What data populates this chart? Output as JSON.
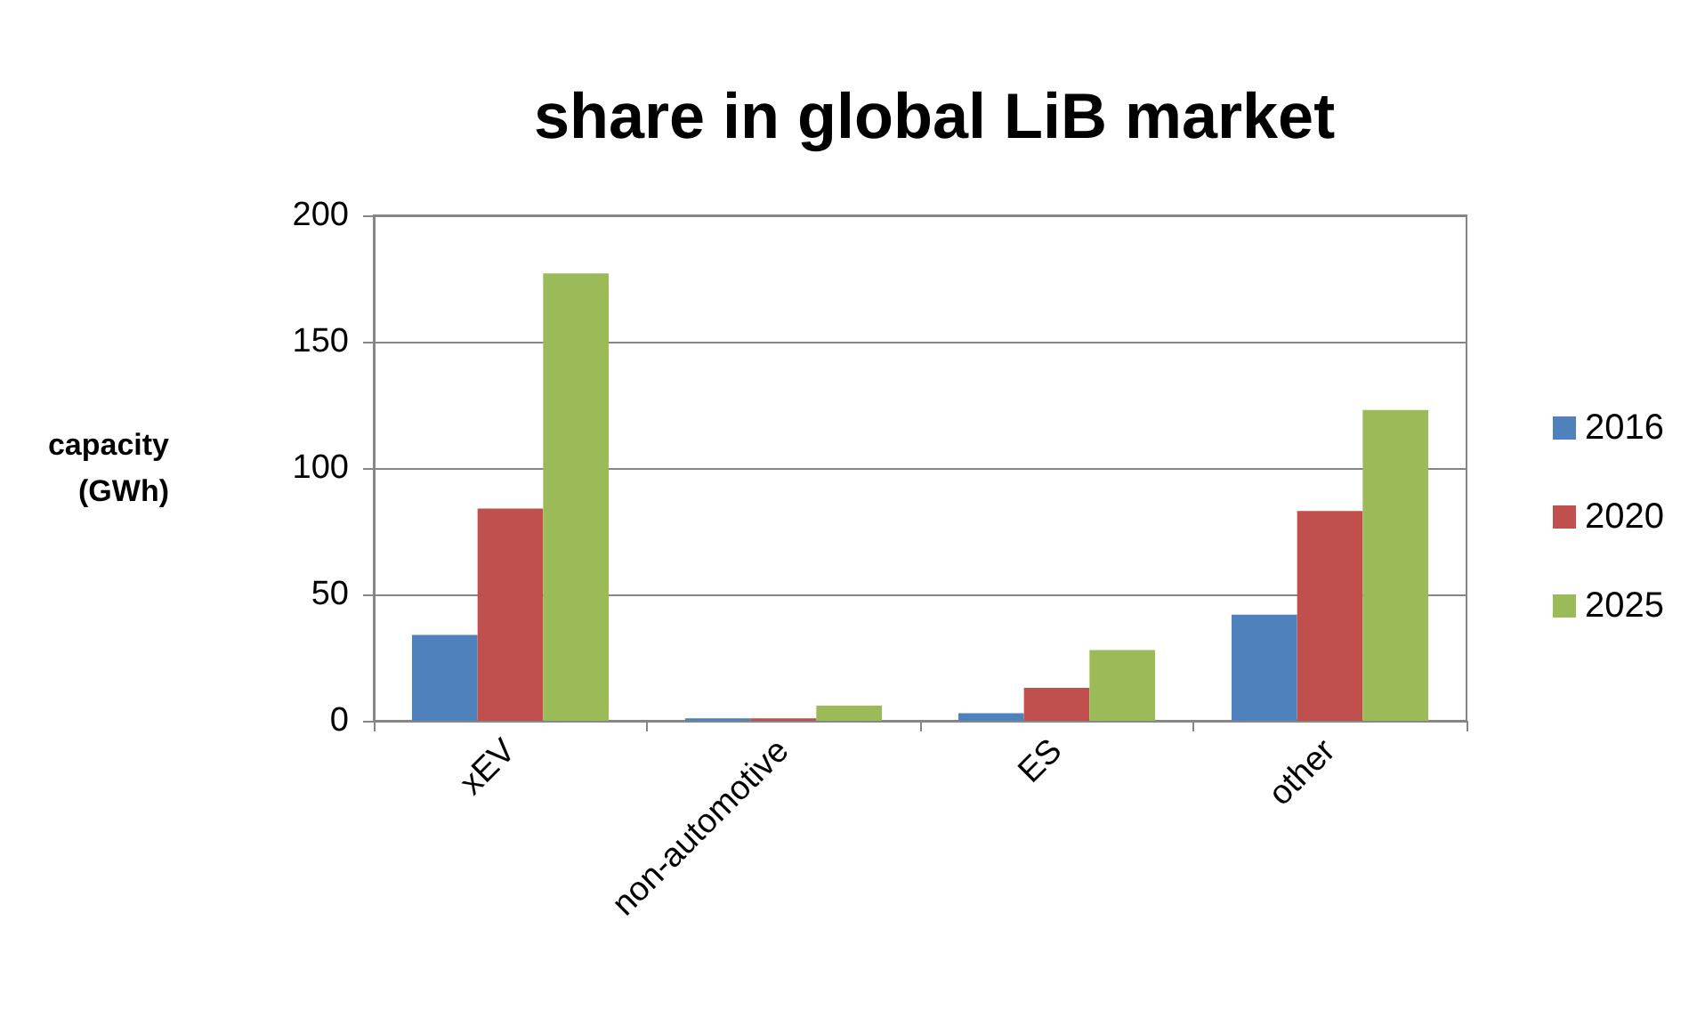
{
  "chart_data": {
    "type": "bar",
    "title": "share in global LiB market",
    "ylabel": "capacity\n(GWh)",
    "categories": [
      "xEV",
      "non-automotive",
      "ES",
      "other"
    ],
    "series": [
      {
        "name": "2016",
        "color": "#4f81bd",
        "values": [
          34,
          1,
          3,
          42
        ]
      },
      {
        "name": "2020",
        "color": "#c0504d",
        "values": [
          84,
          1,
          13,
          83
        ]
      },
      {
        "name": "2025",
        "color": "#9bbb59",
        "values": [
          177,
          6,
          28,
          123
        ]
      }
    ],
    "ylim": [
      0,
      200
    ],
    "yticks": [
      0,
      50,
      100,
      150,
      200
    ],
    "grid": "y",
    "legend": "right"
  }
}
